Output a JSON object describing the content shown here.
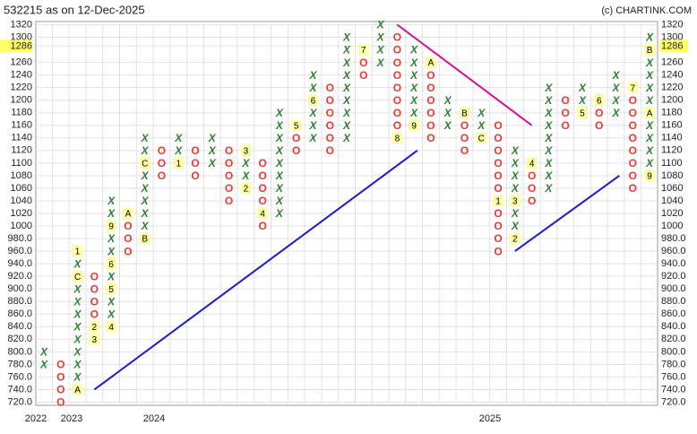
{
  "chart_data": {
    "type": "point-and-figure",
    "title": "532215 as on 12-Dec-2025",
    "credit": "(c) CHARTINK.COM",
    "box_size": 20,
    "ylim": [
      715,
      1325
    ],
    "yticks": [
      1320,
      1300,
      1286,
      1260,
      1240,
      1220,
      1200,
      1180,
      1160,
      1140,
      1120,
      1100,
      1080,
      1060,
      1040,
      1020,
      1000,
      {
        "value": 980,
        "label": "980.0"
      },
      {
        "value": 960,
        "label": "960.0"
      },
      {
        "value": 940,
        "label": "940.0"
      },
      {
        "value": 920,
        "label": "920.0"
      },
      {
        "value": 900,
        "label": "900.0"
      },
      {
        "value": 880,
        "label": "880.0"
      },
      {
        "value": 860,
        "label": "860.0"
      },
      {
        "value": 840,
        "label": "840.0"
      },
      {
        "value": 820,
        "label": "820.0"
      },
      {
        "value": 800,
        "label": "800.0"
      },
      {
        "value": 780,
        "label": "780.0"
      },
      {
        "value": 760,
        "label": "760.0"
      },
      {
        "value": 740,
        "label": "740.0"
      },
      {
        "value": 720,
        "label": "720.0"
      }
    ],
    "last_price": 1286,
    "grid": true,
    "x_labels": [
      "2022",
      "2023",
      "2024",
      "2025"
    ],
    "x_color": "#2e7d32",
    "o_color": "#e53935",
    "month_bg": "#ffffa8",
    "columns": [
      {
        "kind": "X",
        "low": 780,
        "high": 800,
        "boxes": [
          "X",
          "X"
        ]
      },
      {
        "kind": "O",
        "low": 720,
        "high": 780,
        "boxes": [
          "O",
          "O",
          "O",
          "O"
        ]
      },
      {
        "kind": "X",
        "low": 740,
        "high": 960,
        "boxes": [
          "A",
          "X",
          "X",
          "X",
          "X",
          "X",
          "X",
          "X",
          "X",
          "C",
          "X",
          "1"
        ]
      },
      {
        "kind": "O",
        "low": 820,
        "high": 920,
        "boxes": [
          "3",
          "2",
          "O",
          "O",
          "O",
          "O"
        ]
      },
      {
        "kind": "X",
        "low": 840,
        "high": 1040,
        "boxes": [
          "4",
          "X",
          "X",
          "5",
          "X",
          "6",
          "X",
          "X",
          "9",
          "X",
          "X"
        ]
      },
      {
        "kind": "O",
        "low": 960,
        "high": 1020,
        "boxes": [
          "O",
          "O",
          "O",
          "A"
        ]
      },
      {
        "kind": "X",
        "low": 980,
        "high": 1140,
        "boxes": [
          "B",
          "X",
          "X",
          "X",
          "X",
          "X",
          "C",
          "X",
          "X"
        ]
      },
      {
        "kind": "O",
        "low": 1080,
        "high": 1120,
        "boxes": [
          "O",
          "O",
          "O"
        ]
      },
      {
        "kind": "X",
        "low": 1100,
        "high": 1140,
        "boxes": [
          "1",
          "X",
          "X"
        ]
      },
      {
        "kind": "O",
        "low": 1080,
        "high": 1120,
        "boxes": [
          "O",
          "O",
          "O"
        ]
      },
      {
        "kind": "X",
        "low": 1100,
        "high": 1140,
        "boxes": [
          "X",
          "X",
          "X"
        ]
      },
      {
        "kind": "O",
        "low": 1040,
        "high": 1120,
        "boxes": [
          "O",
          "O",
          "O",
          "O",
          "O"
        ]
      },
      {
        "kind": "X",
        "low": 1060,
        "high": 1120,
        "boxes": [
          "2",
          "X",
          "X",
          "3"
        ]
      },
      {
        "kind": "O",
        "low": 1000,
        "high": 1100,
        "boxes": [
          "O",
          "4",
          "O",
          "O",
          "O",
          "O"
        ]
      },
      {
        "kind": "X",
        "low": 1020,
        "high": 1180,
        "boxes": [
          "X",
          "X",
          "X",
          "X",
          "X",
          "X",
          "X",
          "X",
          "X"
        ]
      },
      {
        "kind": "O",
        "low": 1120,
        "high": 1160,
        "boxes": [
          "O",
          "O",
          "5"
        ]
      },
      {
        "kind": "X",
        "low": 1140,
        "high": 1240,
        "boxes": [
          "X",
          "X",
          "X",
          "6",
          "X",
          "X"
        ]
      },
      {
        "kind": "O",
        "low": 1120,
        "high": 1220,
        "boxes": [
          "O",
          "O",
          "O",
          "O",
          "O",
          "O"
        ]
      },
      {
        "kind": "X",
        "low": 1140,
        "high": 1300,
        "boxes": [
          "X",
          "X",
          "X",
          "X",
          "X",
          "X",
          "X",
          "X",
          "X"
        ]
      },
      {
        "kind": "O",
        "low": 1240,
        "high": 1280,
        "boxes": [
          "O",
          "O",
          "7"
        ]
      },
      {
        "kind": "X",
        "low": 1260,
        "high": 1320,
        "boxes": [
          "X",
          "X",
          "X",
          "X"
        ]
      },
      {
        "kind": "O",
        "low": 1140,
        "high": 1300,
        "boxes": [
          "8",
          "O",
          "O",
          "O",
          "O",
          "O",
          "O",
          "O",
          "O"
        ]
      },
      {
        "kind": "X",
        "low": 1160,
        "high": 1280,
        "boxes": [
          "9",
          "X",
          "X",
          "X",
          "X",
          "X",
          "X"
        ]
      },
      {
        "kind": "O",
        "low": 1140,
        "high": 1260,
        "boxes": [
          "O",
          "O",
          "O",
          "O",
          "O",
          "O",
          "A"
        ]
      },
      {
        "kind": "X",
        "low": 1160,
        "high": 1200,
        "boxes": [
          "X",
          "X",
          "X"
        ]
      },
      {
        "kind": "O",
        "low": 1120,
        "high": 1180,
        "boxes": [
          "O",
          "O",
          "O",
          "B"
        ]
      },
      {
        "kind": "X",
        "low": 1140,
        "high": 1180,
        "boxes": [
          "C",
          "X",
          "X"
        ]
      },
      {
        "kind": "O",
        "low": 960,
        "high": 1160,
        "boxes": [
          "O",
          "O",
          "O",
          "O",
          "1",
          "O",
          "O",
          "O",
          "O",
          "O",
          "O"
        ]
      },
      {
        "kind": "X",
        "low": 980,
        "high": 1120,
        "boxes": [
          "2",
          "X",
          "X",
          "3",
          "X",
          "X",
          "X",
          "X"
        ]
      },
      {
        "kind": "O",
        "low": 1040,
        "high": 1100,
        "boxes": [
          "O",
          "O",
          "O",
          "4"
        ]
      },
      {
        "kind": "X",
        "low": 1060,
        "high": 1220,
        "boxes": [
          "X",
          "X",
          "X",
          "X",
          "X",
          "X",
          "X",
          "X",
          "X"
        ]
      },
      {
        "kind": "O",
        "low": 1160,
        "high": 1200,
        "boxes": [
          "O",
          "O",
          "O"
        ]
      },
      {
        "kind": "X",
        "low": 1180,
        "high": 1220,
        "boxes": [
          "5",
          "X",
          "X"
        ]
      },
      {
        "kind": "O",
        "low": 1160,
        "high": 1200,
        "boxes": [
          "O",
          "O",
          "6"
        ]
      },
      {
        "kind": "X",
        "low": 1180,
        "high": 1240,
        "boxes": [
          "X",
          "X",
          "X",
          "X"
        ]
      },
      {
        "kind": "O",
        "low": 1060,
        "high": 1220,
        "boxes": [
          "O",
          "O",
          "O",
          "O",
          "O",
          "O",
          "O",
          "O",
          "7"
        ]
      },
      {
        "kind": "X",
        "low": 1080,
        "high": 1300,
        "boxes": [
          "9",
          "X",
          "X",
          "X",
          "X",
          "A",
          "X",
          "X",
          "X",
          "X",
          "B",
          "X"
        ]
      }
    ],
    "trendlines": [
      {
        "color": "#1a1acd",
        "from": [
          4,
          740
        ],
        "to": [
          23.2,
          1120
        ]
      },
      {
        "color": "#1a1acd",
        "from": [
          29,
          960
        ],
        "to": [
          35.2,
          1080
        ]
      },
      {
        "color": "#d0108f",
        "from": [
          22,
          1320
        ],
        "to": [
          30,
          1160
        ]
      }
    ]
  }
}
